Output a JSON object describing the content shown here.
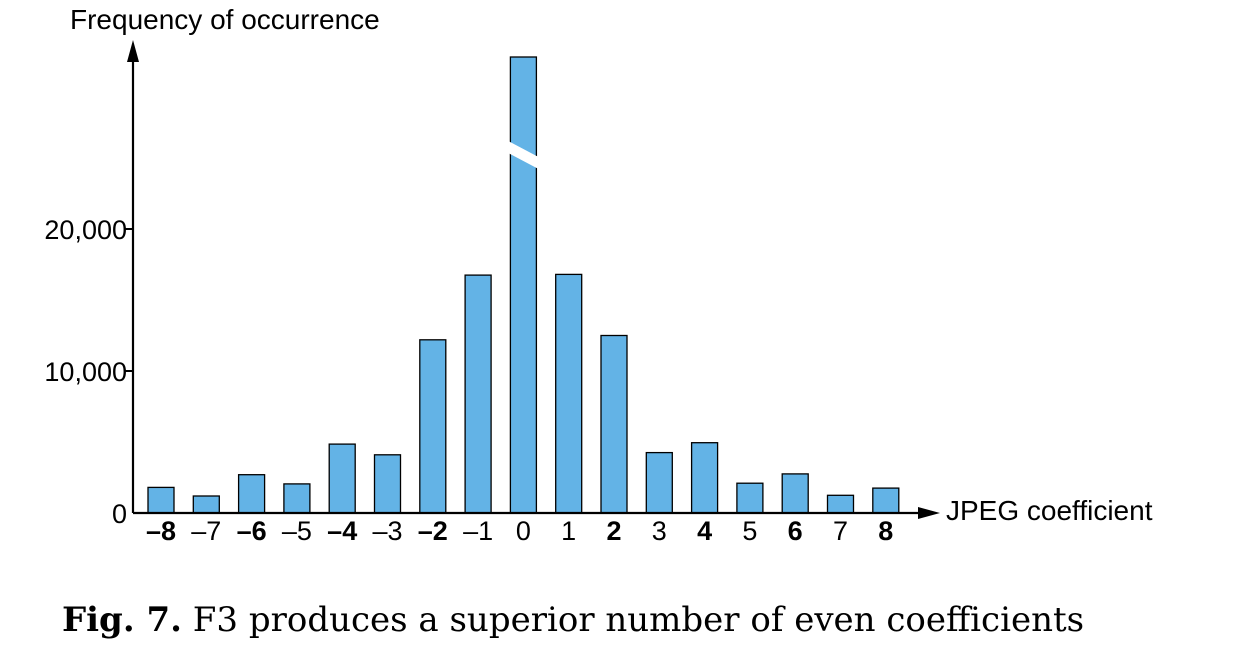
{
  "chart_data": {
    "type": "bar",
    "title": "",
    "ylabel": "Frequency of occurrence",
    "xlabel": "JPEG coefficient",
    "ylim": [
      0,
      30000
    ],
    "y_ticks": [
      {
        "value": 0,
        "label": "0"
      },
      {
        "value": 10000,
        "label": "10,000"
      },
      {
        "value": 20000,
        "label": "20,000"
      }
    ],
    "categories": [
      "–8",
      "–7",
      "–6",
      "–5",
      "–4",
      "–3",
      "–2",
      "–1",
      "0",
      "1",
      "2",
      "3",
      "4",
      "5",
      "6",
      "7",
      "8"
    ],
    "bold_categories": [
      "–8",
      "–6",
      "–4",
      "–2",
      "2",
      "4",
      "6",
      "8"
    ],
    "values": [
      1800,
      1200,
      2700,
      2050,
      4850,
      4100,
      12200,
      16750,
      null,
      16800,
      12500,
      4250,
      4950,
      2100,
      2750,
      1250,
      1750
    ],
    "axis_break_category": "0",
    "bar_color": "#63b3e6",
    "grid": false,
    "legend": "none"
  },
  "caption": {
    "label": "Fig. 7.",
    "text": " F3 produces a superior number of even coefficients"
  }
}
